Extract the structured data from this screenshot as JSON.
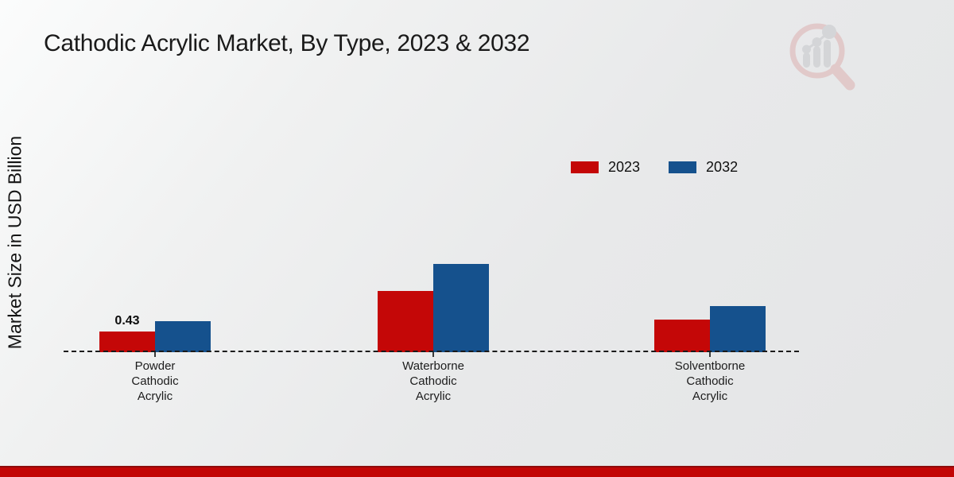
{
  "chart_data": {
    "type": "bar",
    "title": "Cathodic Acrylic Market, By Type, 2023 & 2032",
    "ylabel": "Market Size in USD Billion",
    "xlabel": "",
    "categories": [
      "Powder\nCathodic\nAcrylic",
      "Waterborne\nCathodic\nAcrylic",
      "Solventborne\nCathodic\nAcrylic"
    ],
    "series": [
      {
        "name": "2023",
        "color": "#c40707",
        "values": [
          0.43,
          1.27,
          0.68
        ]
      },
      {
        "name": "2032",
        "color": "#15518d",
        "values": [
          0.64,
          1.84,
          0.96
        ]
      }
    ],
    "annotations": [
      {
        "category_index": 0,
        "series_index": 0,
        "text": "0.43"
      }
    ],
    "ylim": [
      0,
      2.0
    ],
    "grid": false,
    "legend_position": "top-right",
    "baseline_style": "dashed"
  },
  "branding": {
    "logo_name": "magnifier-bar-chart-logo",
    "accent_strip_color": "#c30505",
    "accent_strip_edge_color": "#8e0b0b"
  }
}
